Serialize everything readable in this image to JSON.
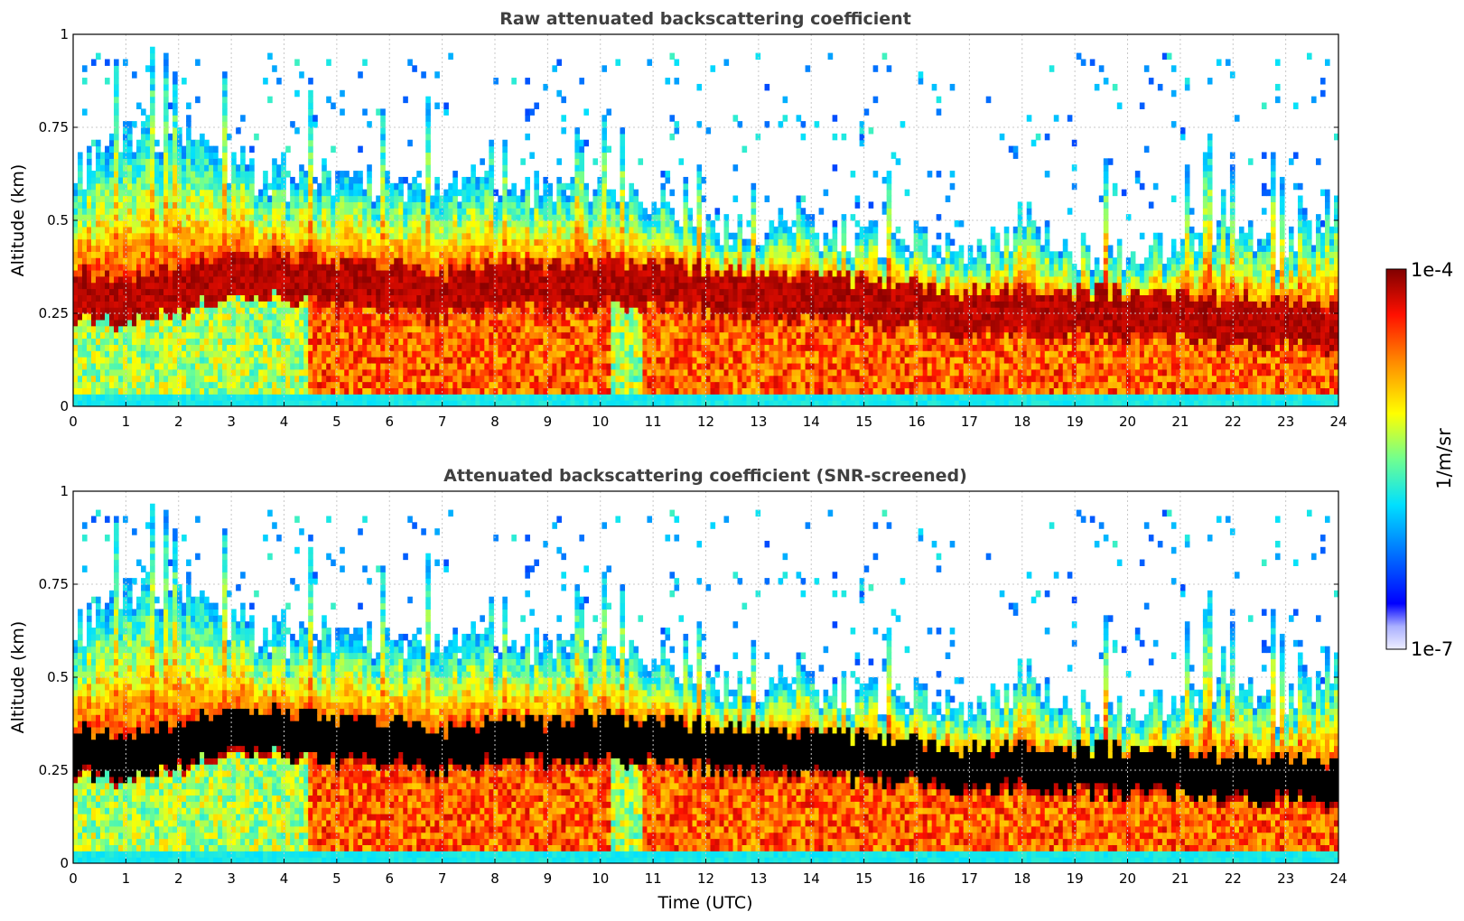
{
  "chart_data": [
    {
      "type": "heatmap",
      "title": "Raw attenuated backscattering coefficient",
      "xlabel": "",
      "ylabel": "Altitude (km)",
      "xlim": [
        0,
        24
      ],
      "ylim": [
        0,
        1
      ],
      "x_ticks": [
        "0",
        "1",
        "2",
        "3",
        "4",
        "5",
        "6",
        "7",
        "8",
        "9",
        "10",
        "11",
        "12",
        "13",
        "14",
        "15",
        "16",
        "17",
        "18",
        "19",
        "20",
        "21",
        "22",
        "23",
        "24"
      ],
      "y_ticks": [
        "0",
        "0.25",
        "0.5",
        "0.75",
        "1"
      ],
      "grid": true,
      "screened": false,
      "layer_top_km": [
        0.62,
        0.72,
        0.75,
        0.65,
        0.6,
        0.62,
        0.6,
        0.58,
        0.6,
        0.58,
        0.6,
        0.55,
        0.5,
        0.48,
        0.47,
        0.45,
        0.45,
        0.38,
        0.5,
        0.42,
        0.42,
        0.44,
        0.45,
        0.42,
        0.55
      ],
      "layer_core_km": [
        0.3,
        0.28,
        0.32,
        0.35,
        0.35,
        0.32,
        0.33,
        0.3,
        0.33,
        0.32,
        0.33,
        0.32,
        0.31,
        0.3,
        0.29,
        0.28,
        0.27,
        0.25,
        0.26,
        0.25,
        0.24,
        0.24,
        0.23,
        0.22,
        0.22
      ]
    },
    {
      "type": "heatmap",
      "title": "Attenuated backscattering coefficient (SNR-screened)",
      "xlabel": "Time (UTC)",
      "ylabel": "Altitude (km)",
      "xlim": [
        0,
        24
      ],
      "ylim": [
        0,
        1
      ],
      "x_ticks": [
        "0",
        "1",
        "2",
        "3",
        "4",
        "5",
        "6",
        "7",
        "8",
        "9",
        "10",
        "11",
        "12",
        "13",
        "14",
        "15",
        "16",
        "17",
        "18",
        "19",
        "20",
        "21",
        "22",
        "23",
        "24"
      ],
      "y_ticks": [
        "0",
        "0.25",
        "0.5",
        "0.75",
        "1"
      ],
      "grid": true,
      "screened": true,
      "layer_top_km": [
        0.62,
        0.72,
        0.75,
        0.65,
        0.6,
        0.62,
        0.6,
        0.58,
        0.6,
        0.58,
        0.6,
        0.55,
        0.5,
        0.48,
        0.47,
        0.45,
        0.45,
        0.38,
        0.5,
        0.42,
        0.42,
        0.44,
        0.45,
        0.42,
        0.55
      ],
      "layer_core_km": [
        0.3,
        0.28,
        0.32,
        0.35,
        0.35,
        0.32,
        0.33,
        0.3,
        0.33,
        0.32,
        0.33,
        0.32,
        0.31,
        0.3,
        0.29,
        0.28,
        0.27,
        0.25,
        0.26,
        0.25,
        0.24,
        0.24,
        0.23,
        0.22,
        0.22
      ]
    }
  ],
  "colorbar": {
    "label": "1/m/sr",
    "max_label": "1e-4",
    "min_label": "1e-7",
    "range": [
      1e-07,
      0.0001
    ],
    "scale": "log",
    "colormap": [
      "#e8e8ff",
      "#0000ff",
      "#00d8ff",
      "#7fff7f",
      "#ffff00",
      "#ff8000",
      "#ff0000",
      "#800000"
    ]
  }
}
